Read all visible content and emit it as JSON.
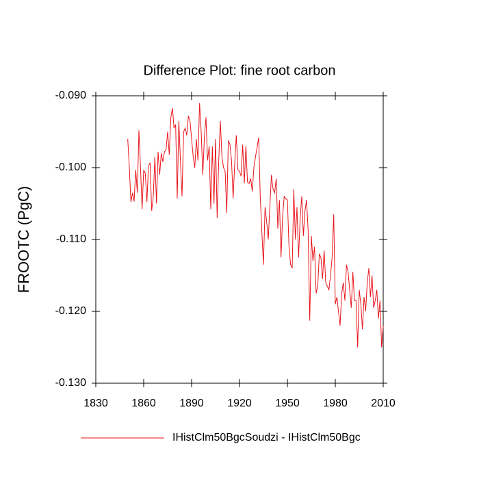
{
  "chart_data": {
    "type": "line",
    "title": "Difference Plot: fine root carbon",
    "y_label": "FROOTC  (PgC)",
    "x": [
      1850,
      1851,
      1852,
      1853,
      1854,
      1855,
      1856,
      1857,
      1858,
      1859,
      1860,
      1861,
      1862,
      1863,
      1864,
      1865,
      1866,
      1867,
      1868,
      1869,
      1870,
      1871,
      1872,
      1873,
      1874,
      1875,
      1876,
      1877,
      1878,
      1879,
      1880,
      1881,
      1882,
      1883,
      1884,
      1885,
      1886,
      1887,
      1888,
      1889,
      1890,
      1891,
      1892,
      1893,
      1894,
      1895,
      1896,
      1897,
      1898,
      1899,
      1900,
      1901,
      1902,
      1903,
      1904,
      1905,
      1906,
      1907,
      1908,
      1909,
      1910,
      1911,
      1912,
      1913,
      1914,
      1915,
      1916,
      1917,
      1918,
      1919,
      1920,
      1921,
      1922,
      1923,
      1924,
      1925,
      1926,
      1927,
      1928,
      1929,
      1930,
      1931,
      1932,
      1933,
      1934,
      1935,
      1936,
      1937,
      1938,
      1939,
      1940,
      1941,
      1942,
      1943,
      1944,
      1945,
      1946,
      1947,
      1948,
      1949,
      1950,
      1951,
      1952,
      1953,
      1954,
      1955,
      1956,
      1957,
      1958,
      1959,
      1960,
      1961,
      1962,
      1963,
      1964,
      1965,
      1966,
      1967,
      1968,
      1969,
      1970,
      1971,
      1972,
      1973,
      1974,
      1975,
      1976,
      1977,
      1978,
      1979,
      1980,
      1981,
      1982,
      1983,
      1984,
      1985,
      1986,
      1987,
      1988,
      1989,
      1990,
      1991,
      1992,
      1993,
      1994,
      1995,
      1996,
      1997,
      1998,
      1999,
      2000,
      2001,
      2002,
      2003,
      2004,
      2005,
      2006,
      2007,
      2008,
      2009,
      2010
    ],
    "series": [
      {
        "name": "IHistClm50BgcSoudzi - IHistClm50Bgc",
        "color": "#e8141b",
        "values": [
          -0.096,
          -0.1,
          -0.1048,
          -0.1035,
          -0.1047,
          -0.1003,
          -0.1035,
          -0.0948,
          -0.1,
          -0.1058,
          -0.1003,
          -0.1008,
          -0.1048,
          -0.0998,
          -0.0993,
          -0.106,
          -0.104,
          -0.0985,
          -0.105,
          -0.0978,
          -0.101,
          -0.098,
          -0.0992,
          -0.0978,
          -0.0975,
          -0.095,
          -0.0982,
          -0.093,
          -0.0917,
          -0.0945,
          -0.094,
          -0.1043,
          -0.0935,
          -0.099,
          -0.104,
          -0.095,
          -0.0945,
          -0.0955,
          -0.0928,
          -0.0935,
          -0.096,
          -0.0985,
          -0.1,
          -0.096,
          -0.099,
          -0.091,
          -0.095,
          -0.101,
          -0.0958,
          -0.093,
          -0.099,
          -0.097,
          -0.1058,
          -0.097,
          -0.105,
          -0.096,
          -0.107,
          -0.099,
          -0.0935,
          -0.0985,
          -0.1,
          -0.1005,
          -0.1063,
          -0.0963,
          -0.0967,
          -0.099,
          -0.1043,
          -0.0995,
          -0.0955,
          -0.1003,
          -0.1005,
          -0.1012,
          -0.0968,
          -0.1022,
          -0.097,
          -0.102,
          -0.1022,
          -0.1015,
          -0.1033,
          -0.1,
          -0.0985,
          -0.0972,
          -0.0958,
          -0.104,
          -0.109,
          -0.1135,
          -0.1055,
          -0.1075,
          -0.11,
          -0.1055,
          -0.101,
          -0.103,
          -0.1035,
          -0.1015,
          -0.1085,
          -0.1045,
          -0.1125,
          -0.1068,
          -0.104,
          -0.1043,
          -0.1045,
          -0.111,
          -0.1135,
          -0.114,
          -0.103,
          -0.11,
          -0.1055,
          -0.1125,
          -0.107,
          -0.104,
          -0.1095,
          -0.106,
          -0.1045,
          -0.1088,
          -0.1213,
          -0.1095,
          -0.113,
          -0.111,
          -0.1175,
          -0.1165,
          -0.112,
          -0.1125,
          -0.1155,
          -0.1115,
          -0.116,
          -0.1165,
          -0.117,
          -0.115,
          -0.1125,
          -0.1065,
          -0.119,
          -0.118,
          -0.12,
          -0.122,
          -0.1175,
          -0.116,
          -0.1185,
          -0.1135,
          -0.1145,
          -0.117,
          -0.1195,
          -0.1145,
          -0.1185,
          -0.1185,
          -0.125,
          -0.117,
          -0.119,
          -0.1225,
          -0.118,
          -0.12,
          -0.116,
          -0.114,
          -0.118,
          -0.115,
          -0.1195,
          -0.1185,
          -0.117,
          -0.121,
          -0.1185,
          -0.125,
          -0.122
        ]
      }
    ],
    "xlim": [
      1830,
      2010
    ],
    "xticks": [
      1830,
      1860,
      1890,
      1920,
      1950,
      1980,
      2010
    ],
    "ylim": [
      -0.13,
      -0.09
    ],
    "yticks": [
      {
        "value": -0.13,
        "label": "-0.130"
      },
      {
        "value": -0.12,
        "label": "-0.120"
      },
      {
        "value": -0.11,
        "label": "-0.110"
      },
      {
        "value": -0.1,
        "label": "-0.100"
      },
      {
        "value": -0.09,
        "label": "-0.090"
      }
    ],
    "grid": false,
    "legend": "bottom"
  }
}
